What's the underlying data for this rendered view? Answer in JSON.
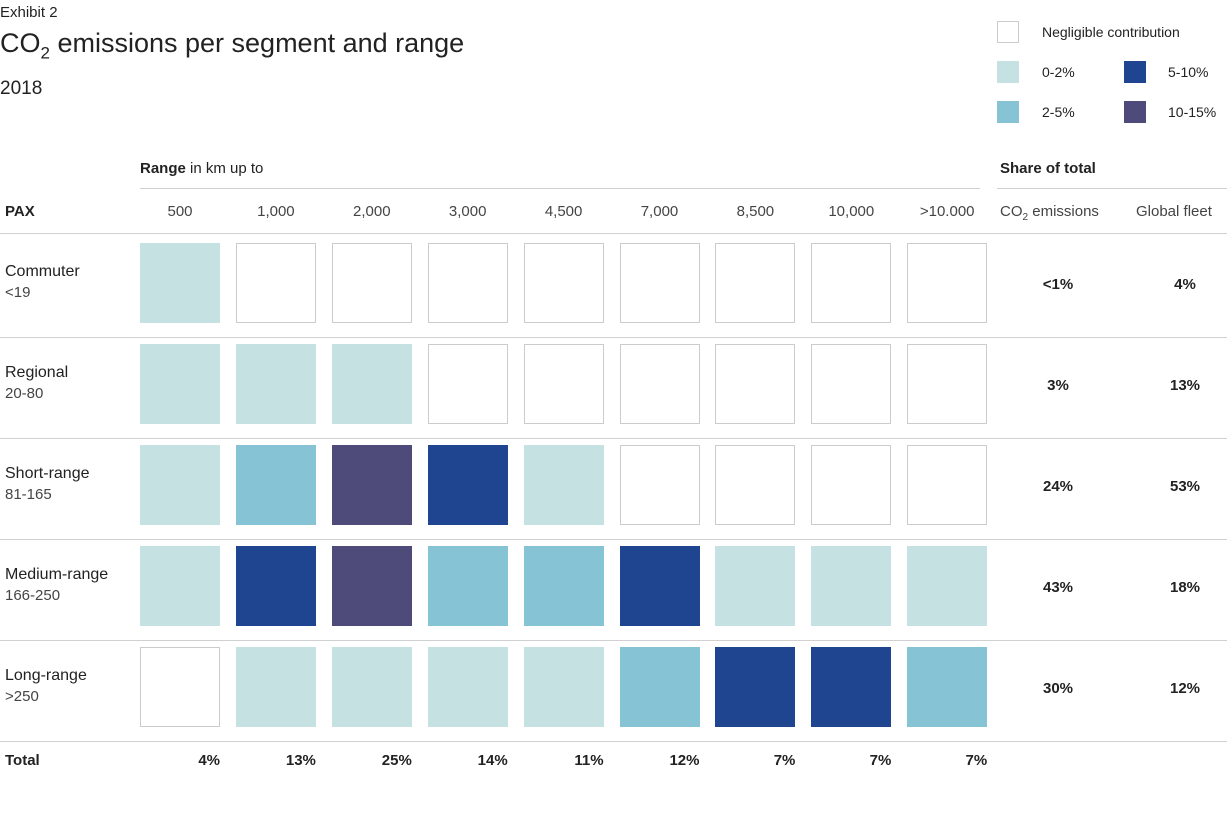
{
  "exhibit": "Exhibit 2",
  "title": {
    "main": "CO",
    "sub": "2",
    "rest": " emissions per segment and range"
  },
  "subtitle": "2018",
  "legend": [
    {
      "label": "Negligible contribution",
      "color": "#ffffff"
    },
    {
      "label": "0-2%",
      "color": "#c5e1e1"
    },
    {
      "label": "5-10%",
      "color": "#1f4591"
    },
    {
      "label": "2-5%",
      "color": "#86c3d5"
    },
    {
      "label": "10-15%",
      "color": "#4e4a7a"
    }
  ],
  "header": {
    "range_bold": "Range",
    "range_rest": " in km up to",
    "share": "Share of total",
    "pax": "PAX",
    "co2": {
      "main": "CO",
      "sub": "2",
      "rest": " emissions"
    },
    "fleet": "Global fleet"
  },
  "columns": [
    "500",
    "1,000",
    "2,000",
    "3,000",
    "4,500",
    "7,000",
    "8,500",
    "10,000",
    ">10.000"
  ],
  "rows": [
    {
      "name": "Commuter",
      "pax": "<19",
      "co2": "<1%",
      "fleet": "4%",
      "cells": [
        "0-2%",
        "Negligible contribution",
        "Negligible contribution",
        "Negligible contribution",
        "Negligible contribution",
        "Negligible contribution",
        "Negligible contribution",
        "Negligible contribution",
        "Negligible contribution"
      ]
    },
    {
      "name": "Regional",
      "pax": "20-80",
      "co2": "3%",
      "fleet": "13%",
      "cells": [
        "0-2%",
        "0-2%",
        "0-2%",
        "Negligible contribution",
        "Negligible contribution",
        "Negligible contribution",
        "Negligible contribution",
        "Negligible contribution",
        "Negligible contribution"
      ]
    },
    {
      "name": "Short-range",
      "pax": "81-165",
      "co2": "24%",
      "fleet": "53%",
      "cells": [
        "0-2%",
        "2-5%",
        "10-15%",
        "5-10%",
        "0-2%",
        "Negligible contribution",
        "Negligible contribution",
        "Negligible contribution",
        "Negligible contribution"
      ]
    },
    {
      "name": "Medium-range",
      "pax": "166-250",
      "co2": "43%",
      "fleet": "18%",
      "cells": [
        "0-2%",
        "5-10%",
        "10-15%",
        "2-5%",
        "2-5%",
        "5-10%",
        "0-2%",
        "0-2%",
        "0-2%"
      ]
    },
    {
      "name": "Long-range",
      "pax": ">250",
      "co2": "30%",
      "fleet": "12%",
      "cells": [
        "Negligible contribution",
        "0-2%",
        "0-2%",
        "0-2%",
        "0-2%",
        "2-5%",
        "5-10%",
        "5-10%",
        "2-5%"
      ]
    }
  ],
  "total": {
    "label": "Total",
    "values": [
      "4%",
      "13%",
      "25%",
      "14%",
      "11%",
      "12%",
      "7%",
      "7%",
      "7%"
    ]
  }
}
